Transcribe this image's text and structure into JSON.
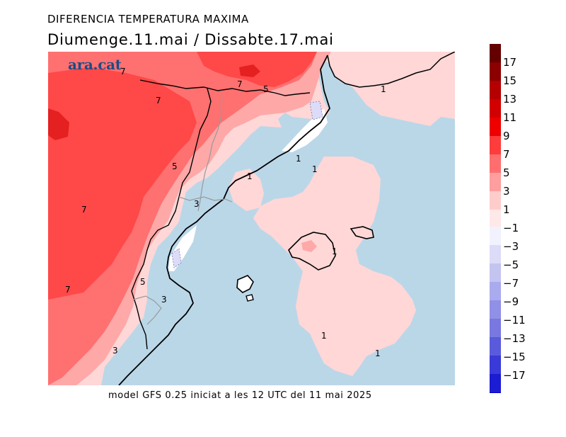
{
  "title": "DIFERENCIA TEMPERATURA MAXIMA",
  "subtitle": "Diumenge.11.mai  /  Dissabte.17.mai",
  "logo": "ara.cat",
  "footer": "model GFS 0.25 iniciat a les 12 UTC del 11 mai 2025",
  "contour_labels": [
    "7",
    "7",
    "7",
    "5",
    "5",
    "7",
    "7",
    "3",
    "5",
    "3",
    "3",
    "1",
    "1",
    "1",
    "1",
    "1",
    "1",
    "1"
  ],
  "legend": {
    "labels": [
      "17",
      "15",
      "13",
      "11",
      "9",
      "7",
      "5",
      "3",
      "1",
      "-1",
      "-3",
      "-5",
      "-7",
      "-9",
      "-11",
      "-13",
      "-15",
      "-17"
    ],
    "positive_colors": [
      "#640000",
      "#8c0000",
      "#b40000",
      "#d20000",
      "#ef0000",
      "#ff3c3c",
      "#ff6e6e",
      "#ff9e9e",
      "#ffcccc",
      "#ffe8e8"
    ],
    "negative_colors": [
      "#f2f2ff",
      "#dcdcf8",
      "#c4c4f0",
      "#aaaaee",
      "#9090e6",
      "#7878e0",
      "#5a5adc",
      "#3a3ad8",
      "#1c1cd2",
      "#0000c8"
    ]
  },
  "colors": {
    "sea": "#bad7e8",
    "land_fill": "#ffd7d7"
  }
}
